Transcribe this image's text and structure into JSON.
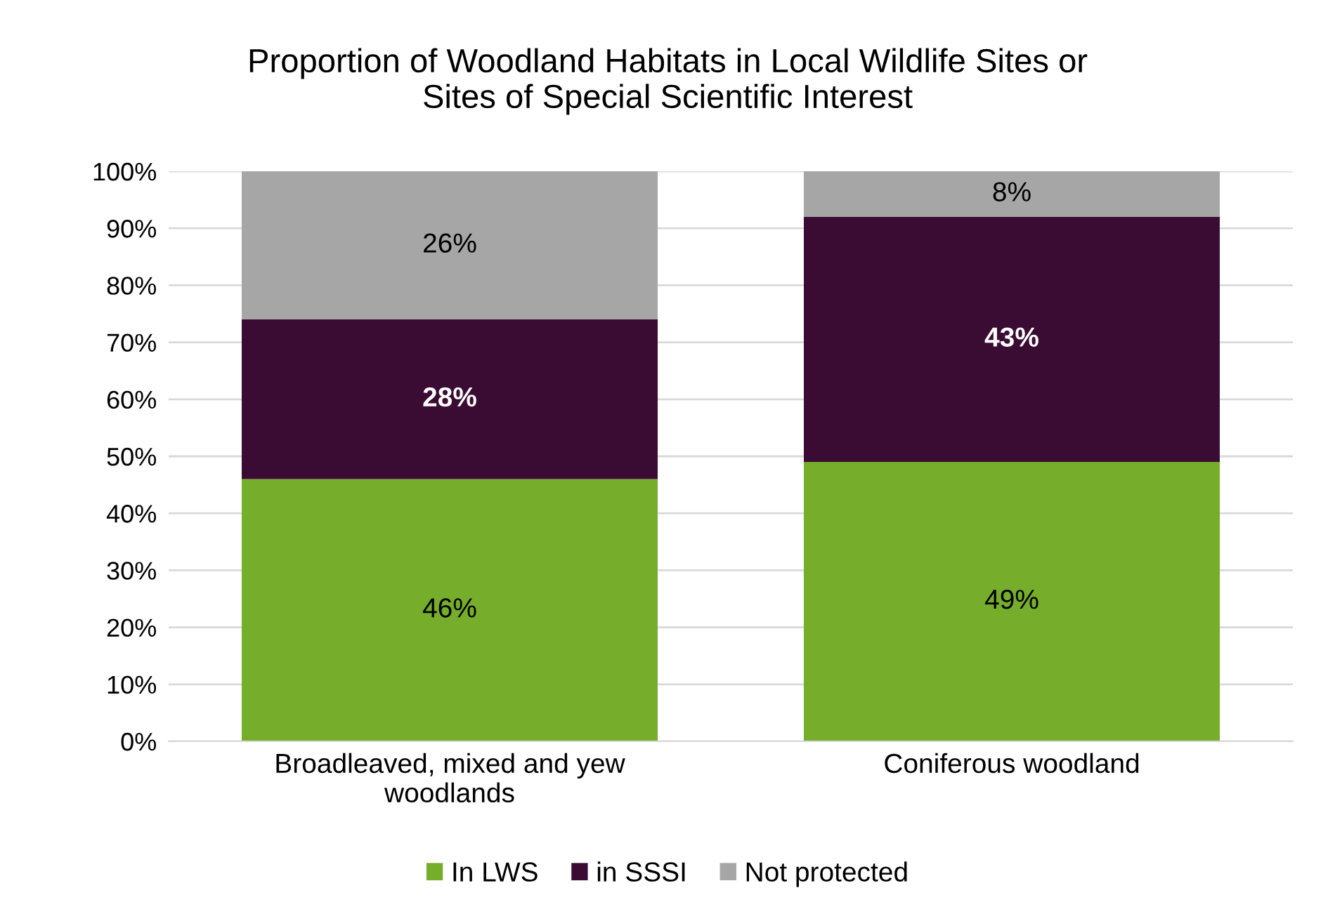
{
  "chart_data": {
    "type": "bar",
    "title": "Proportion of Woodland Habitats in Local Wildlife Sites or\nSites of Special Scientific Interest",
    "categories": [
      "Broadleaved, mixed and yew\nwoodlands",
      "Coniferous woodland"
    ],
    "stacked": true,
    "series": [
      {
        "name": "In LWS",
        "color": "#76ad2a",
        "values": [
          46,
          49
        ],
        "value_labels": [
          "46%",
          "49%"
        ]
      },
      {
        "name": "in SSSI",
        "color": "#3a0c33",
        "values": [
          28,
          43
        ],
        "value_labels": [
          "28%",
          "43%"
        ]
      },
      {
        "name": "Not protected",
        "color": "#a6a6a6",
        "values": [
          26,
          8
        ],
        "value_labels": [
          "26%",
          "8%"
        ]
      }
    ],
    "ylim": [
      0,
      100
    ],
    "yticks": [
      {
        "value": 0,
        "label": "0%"
      },
      {
        "value": 10,
        "label": "10%"
      },
      {
        "value": 20,
        "label": "20%"
      },
      {
        "value": 30,
        "label": "30%"
      },
      {
        "value": 40,
        "label": "40%"
      },
      {
        "value": 50,
        "label": "50%"
      },
      {
        "value": 60,
        "label": "60%"
      },
      {
        "value": 70,
        "label": "70%"
      },
      {
        "value": 80,
        "label": "80%"
      },
      {
        "value": 90,
        "label": "90%"
      },
      {
        "value": 100,
        "label": "100%"
      }
    ],
    "grid": "y",
    "legend": "bottom"
  }
}
